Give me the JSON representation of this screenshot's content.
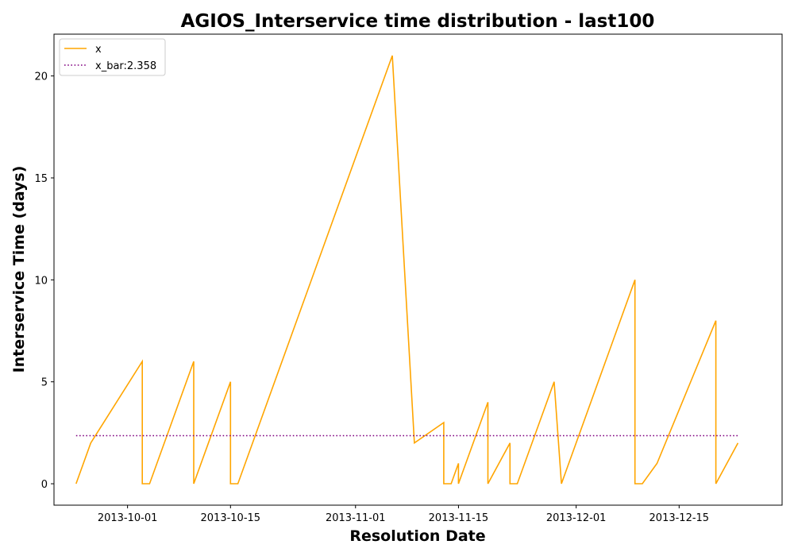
{
  "chart_data": {
    "type": "line",
    "title": "AGIOS_Interservice time distribution - last100",
    "xlabel": "Resolution Date",
    "ylabel": "Interservice Time (days)",
    "x_ticks": [
      "2013-10-01",
      "2013-10-15",
      "2013-11-01",
      "2013-11-15",
      "2013-12-01",
      "2013-12-15"
    ],
    "y_ticks": [
      0,
      5,
      10,
      15,
      20
    ],
    "ylim": [
      -1.05,
      22.05
    ],
    "xlim": [
      "2013-09-21",
      "2013-12-29"
    ],
    "grid": false,
    "legend_position": "top-left",
    "series": [
      {
        "name": "x",
        "color": "#FFA500",
        "style": "solid",
        "points": [
          [
            "2013-09-24",
            0
          ],
          [
            "2013-09-26",
            2
          ],
          [
            "2013-10-03",
            6
          ],
          [
            "2013-10-03",
            0
          ],
          [
            "2013-10-04",
            0
          ],
          [
            "2013-10-10",
            6
          ],
          [
            "2013-10-10",
            0
          ],
          [
            "2013-10-15",
            5
          ],
          [
            "2013-10-15",
            0
          ],
          [
            "2013-10-16",
            0
          ],
          [
            "2013-11-06",
            21
          ],
          [
            "2013-11-09",
            2
          ],
          [
            "2013-11-13",
            3
          ],
          [
            "2013-11-13",
            0
          ],
          [
            "2013-11-14",
            0
          ],
          [
            "2013-11-15",
            1
          ],
          [
            "2013-11-15",
            0
          ],
          [
            "2013-11-19",
            4
          ],
          [
            "2013-11-19",
            0
          ],
          [
            "2013-11-22",
            2
          ],
          [
            "2013-11-22",
            0
          ],
          [
            "2013-11-23",
            0
          ],
          [
            "2013-11-28",
            5
          ],
          [
            "2013-11-29",
            0
          ],
          [
            "2013-12-09",
            10
          ],
          [
            "2013-12-09",
            0
          ],
          [
            "2013-12-10",
            0
          ],
          [
            "2013-12-12",
            1
          ],
          [
            "2013-12-20",
            8
          ],
          [
            "2013-12-20",
            0
          ],
          [
            "2013-12-23",
            2
          ]
        ]
      },
      {
        "name": "x_bar:2.358",
        "color": "#800080",
        "style": "dotted",
        "points": [
          [
            "2013-09-24",
            2.358
          ],
          [
            "2013-12-23",
            2.358
          ]
        ]
      }
    ]
  }
}
